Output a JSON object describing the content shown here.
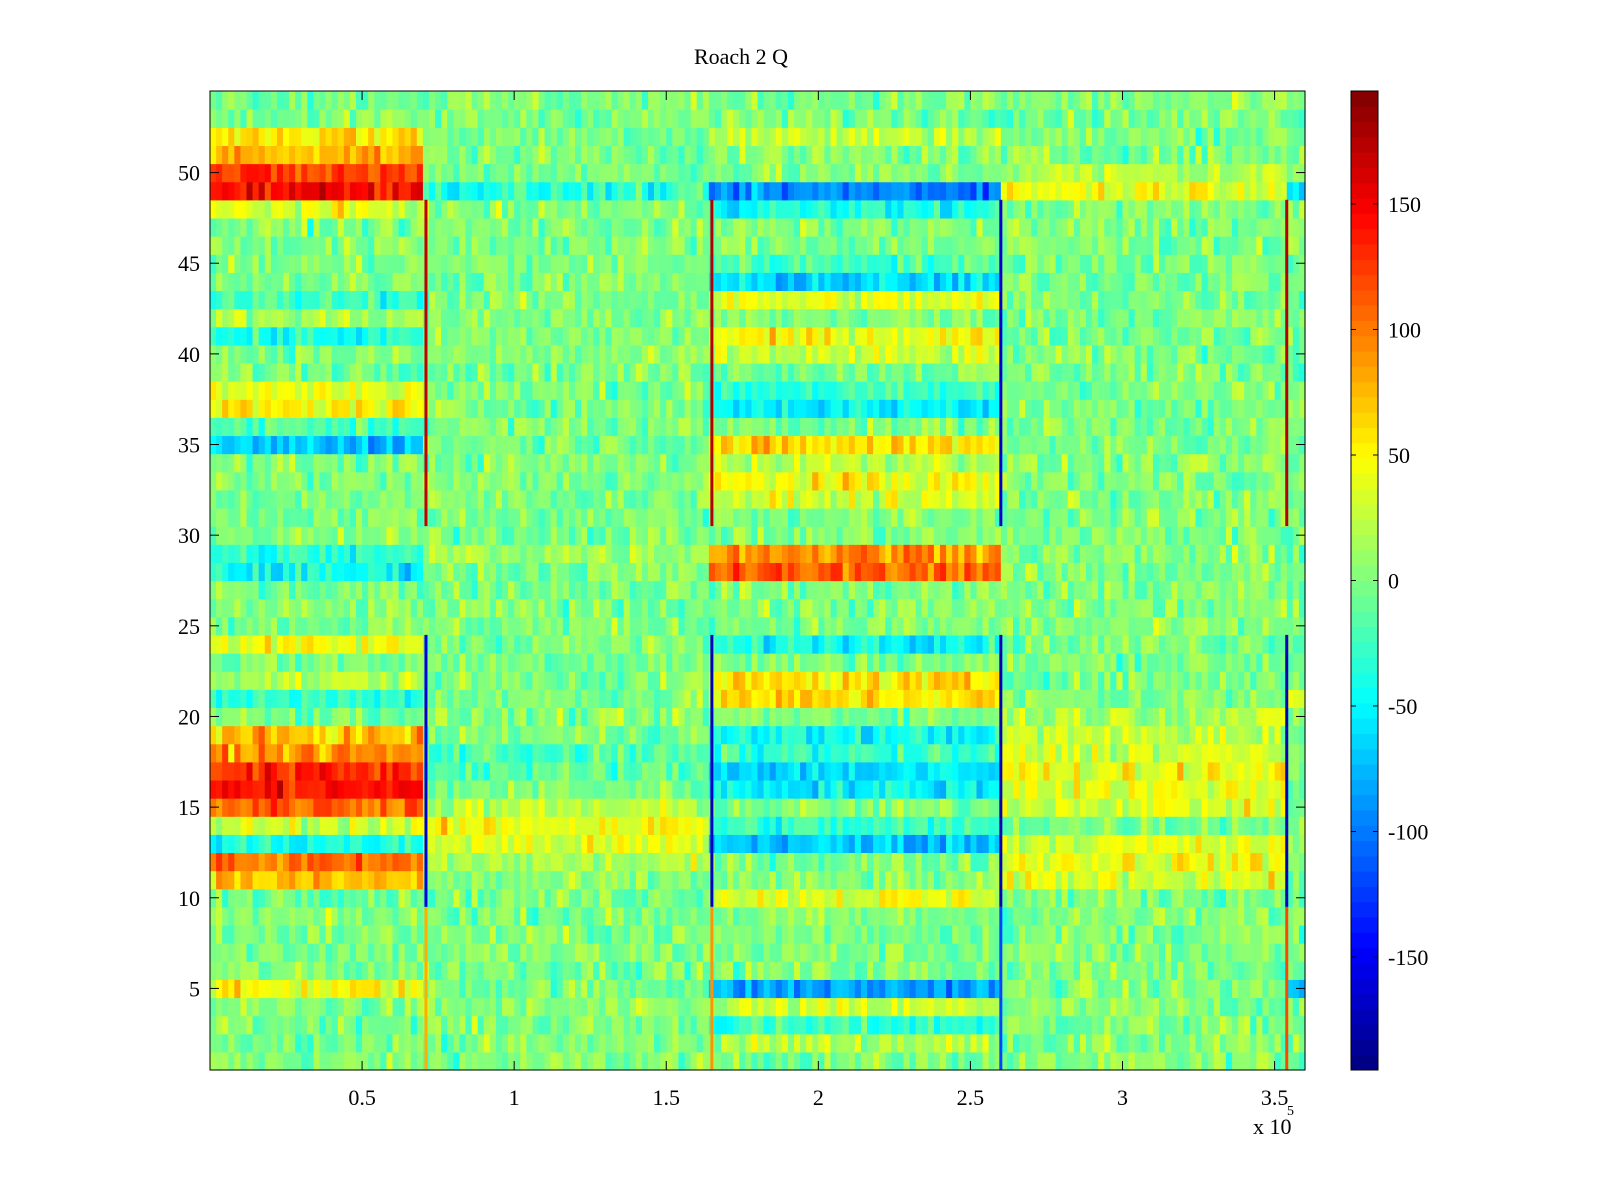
{
  "figure": {
    "background": "#ffffff"
  },
  "chart_data": {
    "type": "heatmap",
    "title": "Roach 2 Q",
    "xlabel": "",
    "ylabel": "",
    "x_exponent_label": "x 10",
    "x_exponent_power": "5",
    "xlim": [
      0,
      360000
    ],
    "ylim": [
      0.5,
      54.5
    ],
    "x_ticks": [
      50000,
      100000,
      150000,
      200000,
      250000,
      300000,
      350000
    ],
    "x_tick_labels": [
      "0.5",
      "1",
      "1.5",
      "2",
      "2.5",
      "3",
      "3.5"
    ],
    "y_ticks": [
      5,
      10,
      15,
      20,
      25,
      30,
      35,
      40,
      45,
      50
    ],
    "y_tick_labels": [
      "5",
      "10",
      "15",
      "20",
      "25",
      "30",
      "35",
      "40",
      "45",
      "50"
    ],
    "n_rows": 54,
    "colormap": "jet",
    "color_range": [
      -195,
      195
    ],
    "colorbar_ticks": [
      -150,
      -100,
      -50,
      0,
      50,
      100,
      150
    ],
    "colorbar_tick_labels": [
      "-150",
      "-100",
      "-50",
      "0",
      "50",
      "100",
      "150"
    ],
    "segment_boundaries_x": [
      0,
      71000,
      165000,
      260000,
      354000,
      360000
    ],
    "row_means_by_segment": [
      {
        "segment_x": [
          0,
          71000
        ],
        "rows": {
          "5": 45,
          "11": 70,
          "12": 100,
          "13": -40,
          "14": 30,
          "15": 110,
          "16": 140,
          "17": 130,
          "18": 90,
          "19": 70,
          "21": -30,
          "22": 20,
          "24": 40,
          "28": -45,
          "29": -35,
          "35": -70,
          "36": -20,
          "37": 50,
          "38": 40,
          "41": -40,
          "42": 15,
          "43": -25,
          "48": 35,
          "49": 150,
          "50": 120,
          "51": 80,
          "52": 60
        }
      },
      {
        "segment_x": [
          71000,
          165000
        ],
        "rows": {
          "12": 15,
          "13": 35,
          "14": 45,
          "15": 20,
          "17": -15,
          "18": -20,
          "20": 0,
          "29": 15,
          "49": -35
        }
      },
      {
        "segment_x": [
          165000,
          260000
        ],
        "rows": {
          "2": 20,
          "3": -30,
          "4": 25,
          "5": -85,
          "10": 40,
          "13": -70,
          "14": -30,
          "16": -50,
          "17": -60,
          "18": -30,
          "19": -45,
          "21": 60,
          "22": 55,
          "24": -40,
          "28": 110,
          "29": 95,
          "32": 30,
          "33": 45,
          "34": 25,
          "35": 60,
          "37": -50,
          "38": -30,
          "40": 25,
          "41": 45,
          "43": 35,
          "44": -65,
          "45": -20,
          "48": -40,
          "49": -95,
          "52": 25
        }
      },
      {
        "segment_x": [
          260000,
          354000
        ],
        "rows": {
          "11": 35,
          "12": 45,
          "13": 35,
          "15": 35,
          "16": 40,
          "17": 45,
          "18": 30,
          "19": 25,
          "20": 20,
          "49": 45,
          "50": 20
        }
      },
      {
        "segment_x": [
          354000,
          360000
        ],
        "rows": {
          "5": -70,
          "21": 50,
          "49": -55
        }
      }
    ],
    "transition_columns": [
      {
        "x": 71000,
        "rows_low": [
          1,
          9
        ],
        "value_low": 80,
        "rows_mid": [
          10,
          24
        ],
        "value_mid": -160,
        "rows_high": [
          31,
          48
        ],
        "value_high": 170
      },
      {
        "x": 165000,
        "rows_low": [
          1,
          9
        ],
        "value_low": 90,
        "rows_mid": [
          10,
          24
        ],
        "value_mid": -170,
        "rows_high": [
          31,
          48
        ],
        "value_high": 175
      },
      {
        "x": 260000,
        "rows_low": [
          1,
          9
        ],
        "value_low": -120,
        "rows_mid": [
          10,
          24
        ],
        "value_mid": -175,
        "rows_high": [
          31,
          48
        ],
        "value_high": -165
      },
      {
        "x": 354000,
        "rows_low": [
          1,
          9
        ],
        "value_low": 120,
        "rows_mid": [
          10,
          24
        ],
        "value_mid": -175,
        "rows_high": [
          31,
          48
        ],
        "value_high": 175
      }
    ]
  }
}
